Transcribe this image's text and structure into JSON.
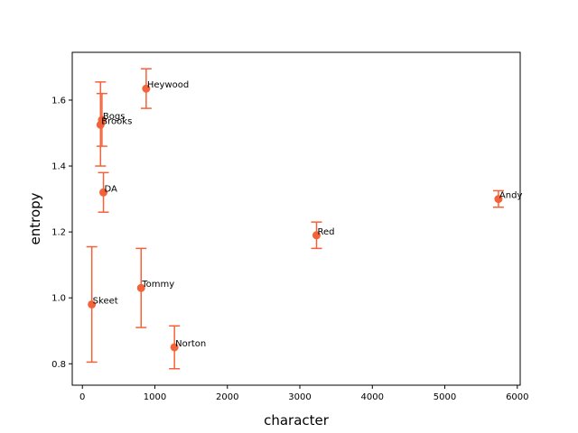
{
  "chart_data": {
    "type": "scatter",
    "title": "",
    "xlabel": "character",
    "ylabel": "entropy",
    "xlim": [
      -140,
      6040
    ],
    "ylim": [
      0.735,
      1.745
    ],
    "xticks": [
      0,
      1000,
      2000,
      3000,
      4000,
      5000,
      6000
    ],
    "yticks": [
      0.8,
      1.0,
      1.2,
      1.4,
      1.6
    ],
    "ytick_labels": [
      "0.8",
      "1.0",
      "1.2",
      "1.4",
      "1.6"
    ],
    "grid": false,
    "color": "#f4623a",
    "points": [
      {
        "label": "Heywood",
        "x": 880,
        "y": 1.635,
        "err_low": 1.575,
        "err_high": 1.695
      },
      {
        "label": "Bogs",
        "x": 270,
        "y": 1.54,
        "err_low": 1.46,
        "err_high": 1.62
      },
      {
        "label": "Brooks",
        "x": 250,
        "y": 1.525,
        "err_low": 1.4,
        "err_high": 1.655
      },
      {
        "label": "DA",
        "x": 290,
        "y": 1.32,
        "err_low": 1.26,
        "err_high": 1.38
      },
      {
        "label": "Andy",
        "x": 5740,
        "y": 1.3,
        "err_low": 1.275,
        "err_high": 1.325
      },
      {
        "label": "Red",
        "x": 3230,
        "y": 1.19,
        "err_low": 1.15,
        "err_high": 1.23
      },
      {
        "label": "Tommy",
        "x": 810,
        "y": 1.03,
        "err_low": 0.91,
        "err_high": 1.15
      },
      {
        "label": "Skeet",
        "x": 130,
        "y": 0.98,
        "err_low": 0.805,
        "err_high": 1.155
      },
      {
        "label": "Norton",
        "x": 1270,
        "y": 0.85,
        "err_low": 0.785,
        "err_high": 0.915
      }
    ]
  }
}
